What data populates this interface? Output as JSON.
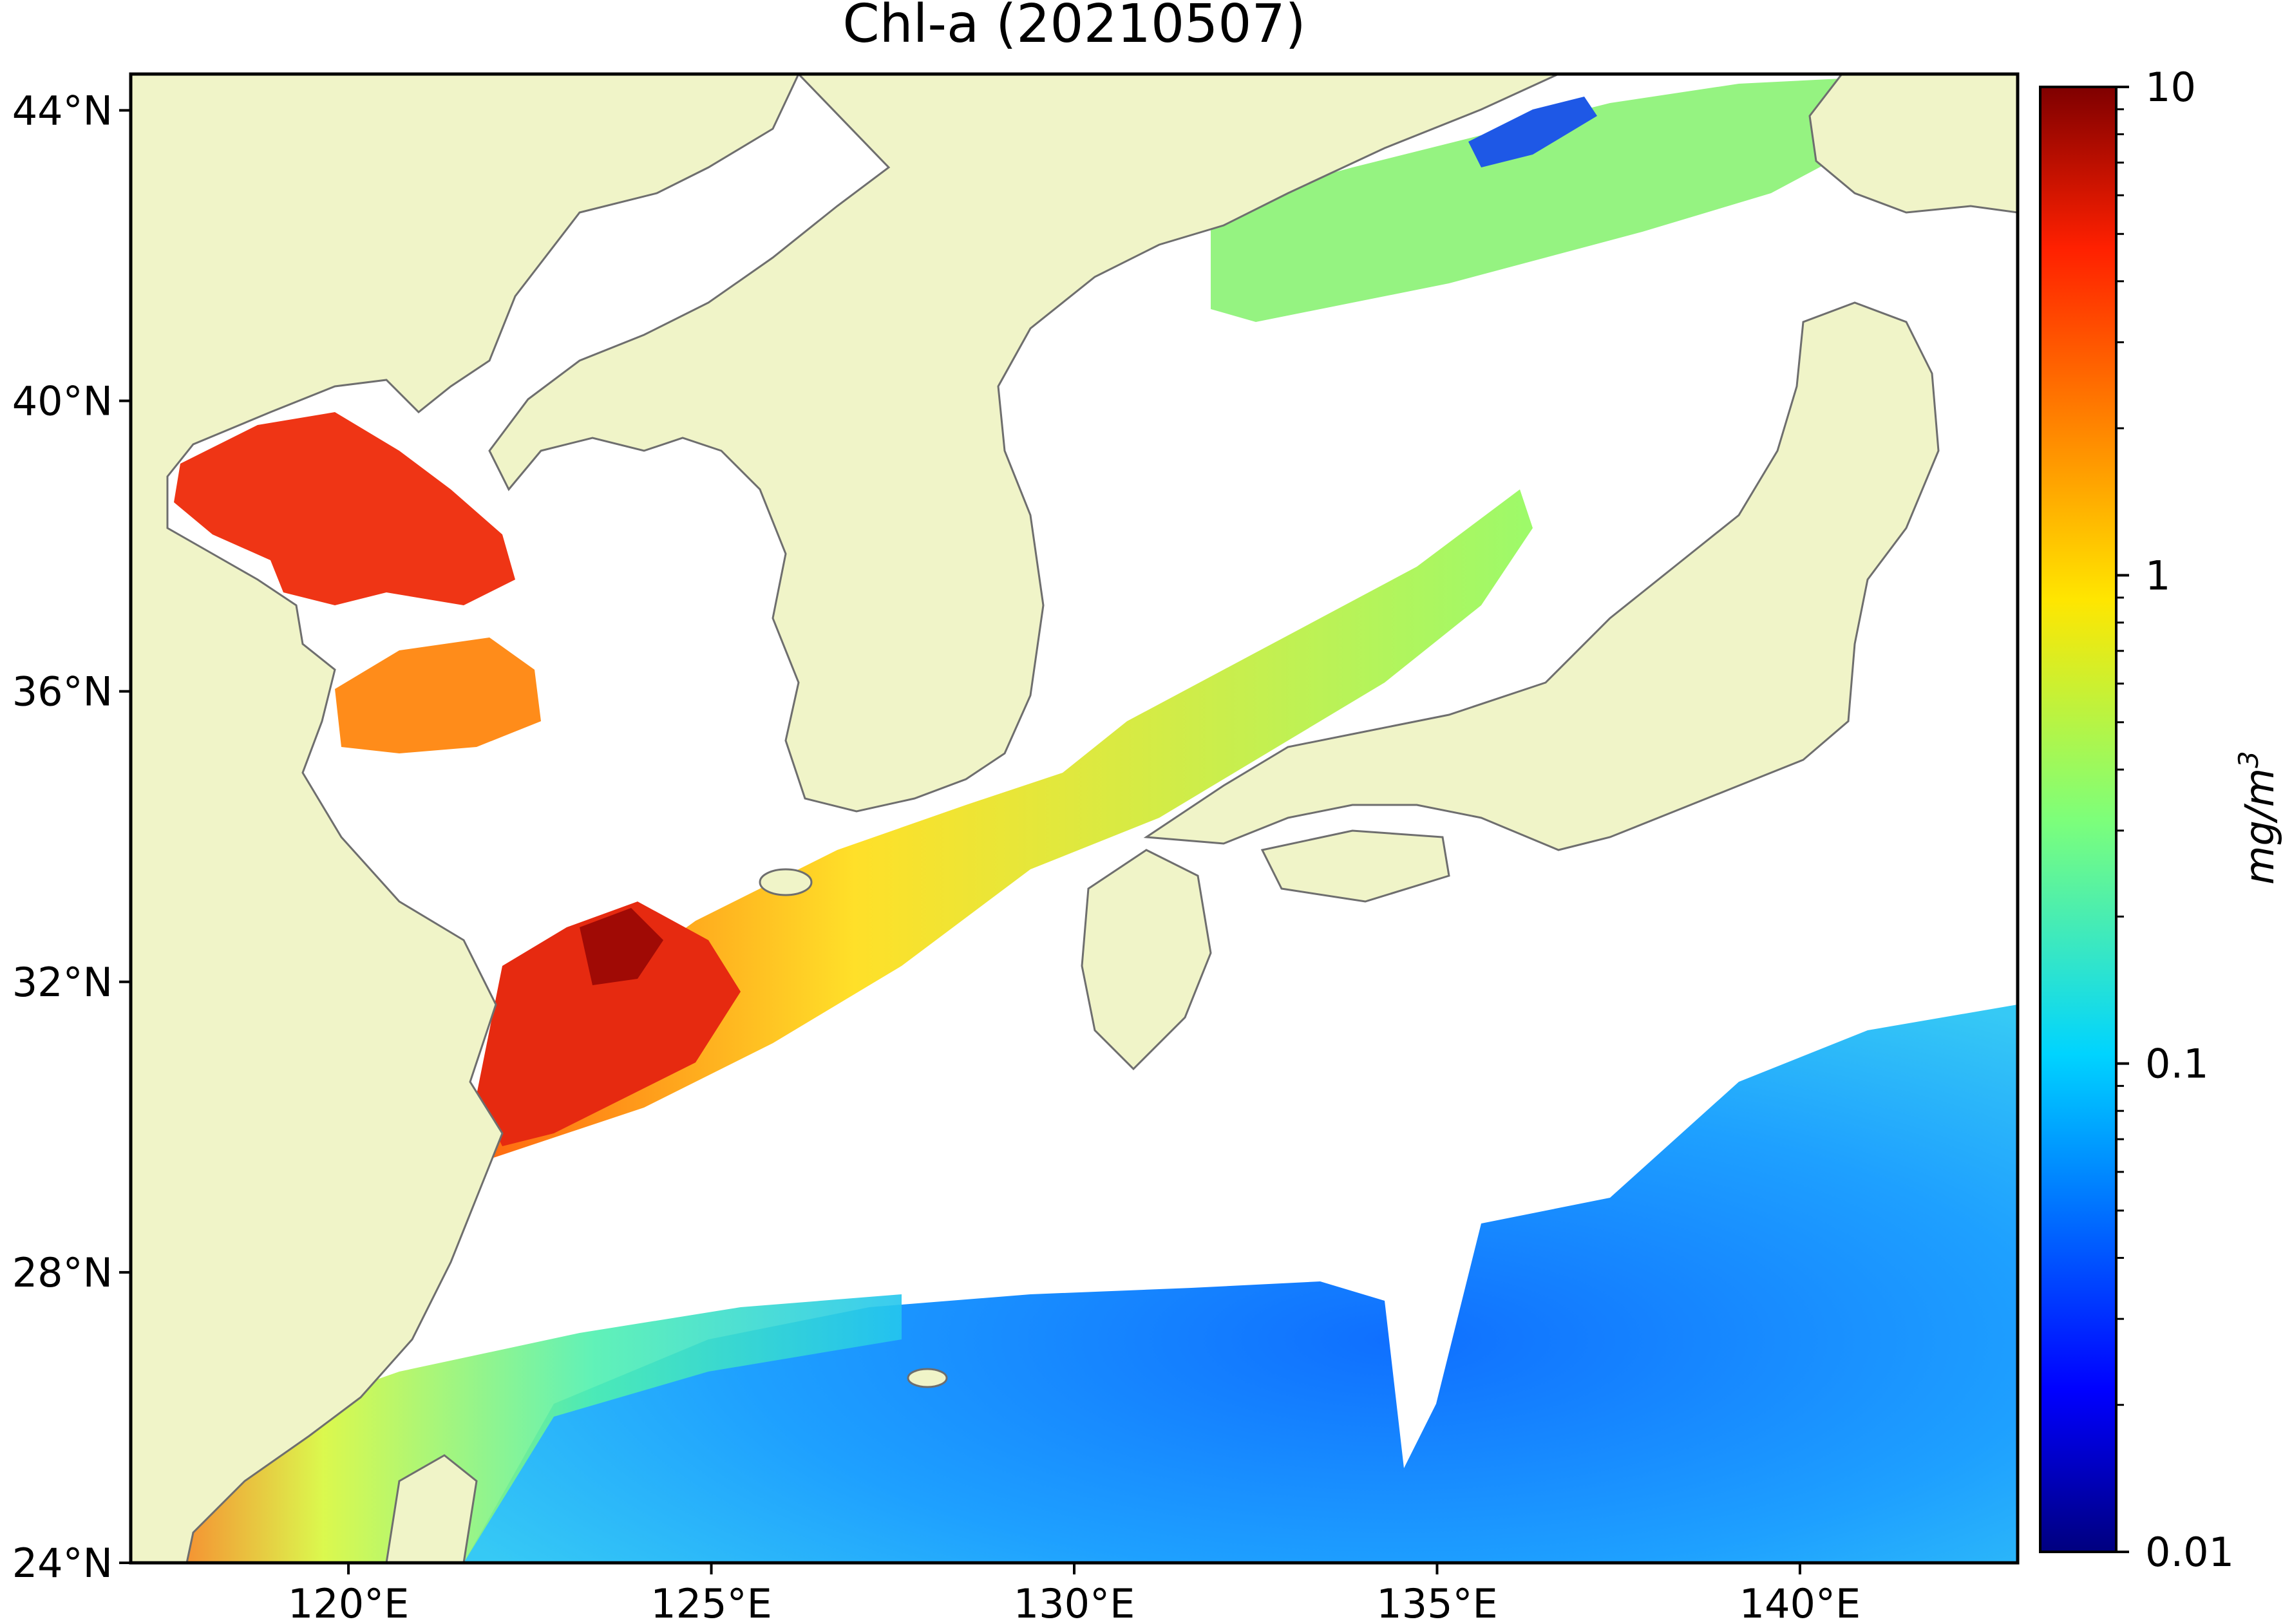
{
  "title": "Chl-a (20210507)",
  "map": {
    "lon_range": [
      117,
      143
    ],
    "lat_range": [
      24,
      44.5
    ],
    "lon_ticks": [
      {
        "value": 120,
        "label": "120°E"
      },
      {
        "value": 125,
        "label": "125°E"
      },
      {
        "value": 130,
        "label": "130°E"
      },
      {
        "value": 135,
        "label": "135°E"
      },
      {
        "value": 140,
        "label": "140°E"
      }
    ],
    "lat_ticks": [
      {
        "value": 24,
        "label": "24°N"
      },
      {
        "value": 28,
        "label": "28°N"
      },
      {
        "value": 32,
        "label": "32°N"
      },
      {
        "value": 36,
        "label": "36°N"
      },
      {
        "value": 40,
        "label": "40°N"
      },
      {
        "value": 44,
        "label": "44°N"
      }
    ],
    "land_color": "#f0f4c8",
    "coast_color": "#6e6e6e",
    "cloud_color": "#ffffff"
  },
  "colorbar": {
    "scale": "log",
    "colormap": "jet",
    "min": 0.01,
    "max": 10,
    "ticks": [
      {
        "value": 0.01,
        "label": "0.01"
      },
      {
        "value": 0.1,
        "label": "0.1"
      },
      {
        "value": 1,
        "label": "1"
      },
      {
        "value": 10,
        "label": "10"
      }
    ],
    "unit_label": "mg/m",
    "unit_exponent": "3"
  }
}
